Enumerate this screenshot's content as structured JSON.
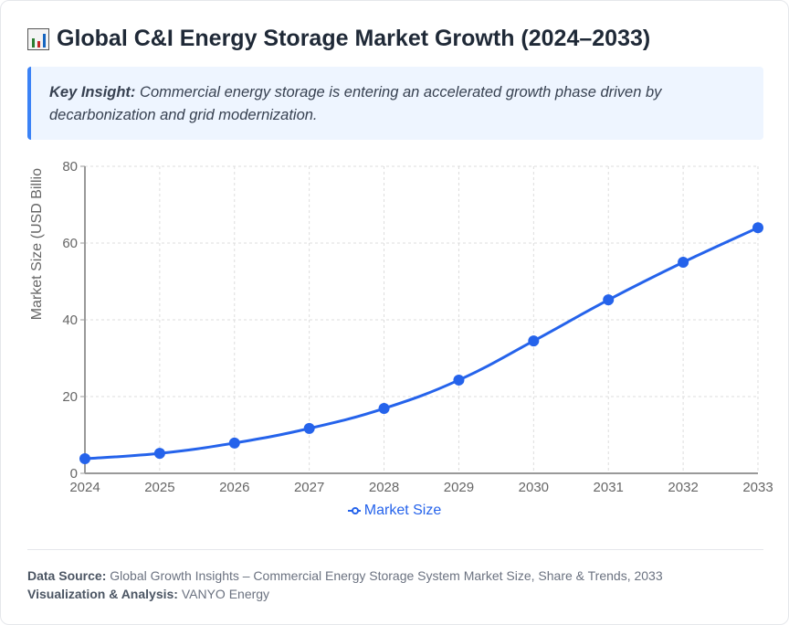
{
  "title": "Global C&I Energy Storage Market Growth (2024–2033)",
  "title_icon": "bar-chart-icon",
  "insight": {
    "label": "Key Insight:",
    "text": "Commercial energy storage is entering an accelerated growth phase driven by decarbonization and grid modernization."
  },
  "chart_data": {
    "type": "line",
    "x": [
      "2024",
      "2025",
      "2026",
      "2027",
      "2028",
      "2029",
      "2030",
      "2031",
      "2032",
      "2033"
    ],
    "series": [
      {
        "name": "Market Size",
        "values": [
          3.8,
          5.2,
          7.9,
          11.7,
          16.9,
          24.3,
          34.5,
          45.2,
          55.0,
          64.0
        ],
        "color": "#2563eb"
      }
    ],
    "ylabel": "Market Size (USD Billio",
    "xlabel": "",
    "ylim": [
      0,
      80
    ],
    "yticks": [
      "0",
      "20",
      "40",
      "60",
      "80"
    ],
    "grid": true,
    "legend": "bottom"
  },
  "footer": {
    "source_label": "Data Source:",
    "source_text": "Global Growth Insights – Commercial Energy Storage System Market Size, Share & Trends, 2033",
    "viz_label": "Visualization & Analysis:",
    "viz_text": "VANYO Energy"
  }
}
